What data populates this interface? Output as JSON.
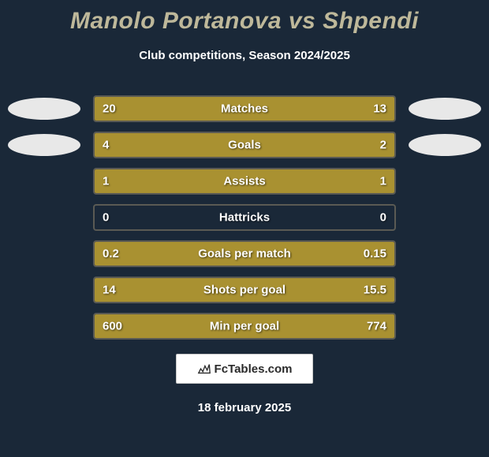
{
  "title": "Manolo Portanova vs Shpendi",
  "subtitle": "Club competitions, Season 2024/2025",
  "background_color": "#1a2838",
  "title_color": "#beb89a",
  "text_color": "#ffffff",
  "bar_color_left": "#a99131",
  "bar_color_right": "#a99131",
  "bar_border_color": "#5a5a54",
  "oval_color": "#e8e8e8",
  "title_fontsize": 30,
  "subtitle_fontsize": 15,
  "value_fontsize": 15,
  "rows": [
    {
      "label": "Matches",
      "left_val": "20",
      "right_val": "13",
      "left_pct": 60,
      "right_pct": 40,
      "show_ovals": true
    },
    {
      "label": "Goals",
      "left_val": "4",
      "right_val": "2",
      "left_pct": 66,
      "right_pct": 34,
      "show_ovals": true
    },
    {
      "label": "Assists",
      "left_val": "1",
      "right_val": "1",
      "left_pct": 50,
      "right_pct": 50,
      "show_ovals": false
    },
    {
      "label": "Hattricks",
      "left_val": "0",
      "right_val": "0",
      "left_pct": 0,
      "right_pct": 0,
      "show_ovals": false
    },
    {
      "label": "Goals per match",
      "left_val": "0.2",
      "right_val": "0.15",
      "left_pct": 57,
      "right_pct": 43,
      "show_ovals": false
    },
    {
      "label": "Shots per goal",
      "left_val": "14",
      "right_val": "15.5",
      "left_pct": 47,
      "right_pct": 53,
      "show_ovals": false
    },
    {
      "label": "Min per goal",
      "left_val": "600",
      "right_val": "774",
      "left_pct": 44,
      "right_pct": 56,
      "show_ovals": false
    }
  ],
  "brand": "FcTables.com",
  "date": "18 february 2025"
}
